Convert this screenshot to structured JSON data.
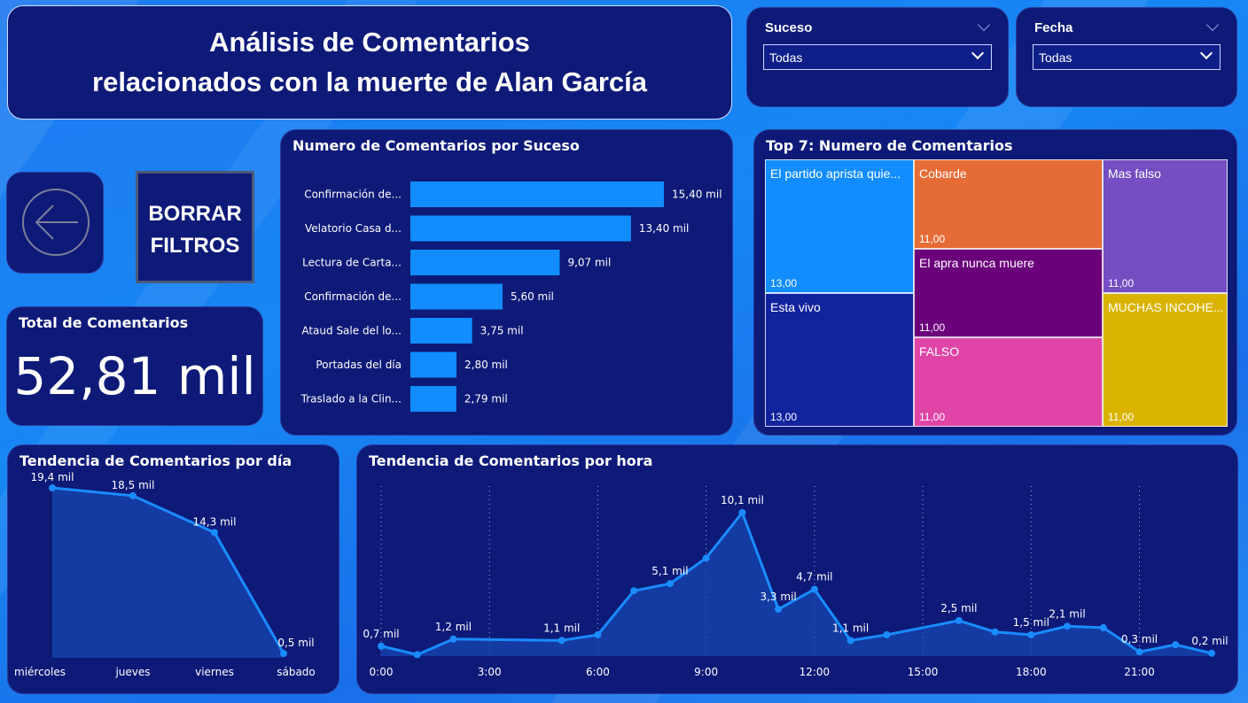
{
  "header": {
    "title_line1": "Análisis de Comentarios",
    "title_line2": "relacionados con la muerte de Alan García"
  },
  "slicers": {
    "suceso": {
      "label": "Suceso",
      "value": "Todas"
    },
    "fecha": {
      "label": "Fecha",
      "value": "Todas"
    }
  },
  "buttons": {
    "back_icon": "arrow-left-circle-icon",
    "clear_line1": "BORRAR",
    "clear_line2": "FILTROS"
  },
  "total": {
    "label": "Total de Comentarios",
    "value": "52,81 mil"
  },
  "colors": {
    "card_bg": "#0d1a78",
    "bar": "#118dff",
    "line": "#1a8cff",
    "area": "#1747b0"
  },
  "chart_data": [
    {
      "type": "bar",
      "title": "Numero de Comentarios por Suceso",
      "orientation": "horizontal",
      "categories": [
        "Confirmación de...",
        "Velatorio Casa d...",
        "Lectura de Carta...",
        "Confirmación de...",
        "Ataud Sale del lo...",
        "Portadas del día",
        "Traslado a la Clin..."
      ],
      "values": [
        15.4,
        13.4,
        9.07,
        5.6,
        3.75,
        2.8,
        2.79
      ],
      "labels": [
        "15,40 mil",
        "13,40 mil",
        "9,07 mil",
        "5,60 mil",
        "3,75 mil",
        "2,80 mil",
        "2,79 mil"
      ],
      "unit": "mil"
    },
    {
      "type": "treemap",
      "title": "Top 7: Numero de Comentarios",
      "items": [
        {
          "name": "El partido aprista quie...",
          "value": "13,00",
          "color": "#118dff"
        },
        {
          "name": "Esta vivo",
          "value": "13,00",
          "color": "#12239e"
        },
        {
          "name": "Cobarde",
          "value": "11,00",
          "color": "#e66c37"
        },
        {
          "name": "El apra nunca muere",
          "value": "11,00",
          "color": "#6b007b"
        },
        {
          "name": "FALSO",
          "value": "11,00",
          "color": "#e044a7"
        },
        {
          "name": "Mas falso",
          "value": "11,00",
          "color": "#744ec2"
        },
        {
          "name": "MUCHAS INCOHE...",
          "value": "11,00",
          "color": "#d9b300"
        }
      ]
    },
    {
      "type": "area",
      "title": "Tendencia de Comentarios por día",
      "categories": [
        "miércoles",
        "jueves",
        "viernes",
        "sábado"
      ],
      "values": [
        19.4,
        18.5,
        14.3,
        0.5
      ],
      "labels": [
        "19,4 mil",
        "18,5 mil",
        "14,3 mil",
        "0,5 mil"
      ],
      "ylim": [
        0,
        19.4
      ]
    },
    {
      "type": "area",
      "title": "Tendencia de Comentarios por hora",
      "x": [
        0,
        1,
        2,
        5,
        6,
        7,
        8,
        9,
        10,
        11,
        12,
        13,
        14,
        16,
        17,
        18,
        19,
        20,
        21,
        22,
        23
      ],
      "values": [
        0.7,
        0.1,
        1.2,
        1.1,
        1.5,
        4.6,
        5.1,
        6.9,
        10.1,
        3.3,
        4.7,
        1.1,
        1.5,
        2.5,
        1.7,
        1.5,
        2.1,
        2.0,
        0.3,
        0.8,
        0.2
      ],
      "point_labels": {
        "0": "0,7 mil",
        "2": "1,2 mil",
        "5": "1,1 mil",
        "8": "5,1 mil",
        "10": "10,1 mil",
        "11": "3,3 mil",
        "12": "4,7 mil",
        "13": "1,1 mil",
        "16": "2,5 mil",
        "18": "1,5 mil",
        "19": "2,1 mil",
        "21": "0,3 mil",
        "23": "0,2 mil"
      },
      "xticks": [
        "0:00",
        "3:00",
        "6:00",
        "9:00",
        "12:00",
        "15:00",
        "18:00",
        "21:00"
      ],
      "xlim": [
        0,
        23
      ],
      "ylim": [
        0,
        10.1
      ],
      "grid": "vertical-dotted"
    }
  ]
}
